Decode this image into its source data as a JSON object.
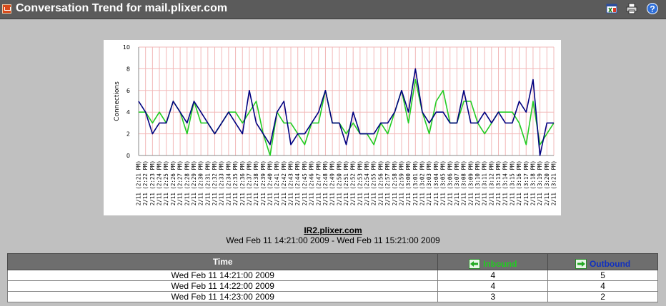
{
  "window": {
    "title": "Conversation Trend for mail.plixer.com",
    "icons": [
      "excel-export-icon",
      "print-icon",
      "help-icon"
    ]
  },
  "colors": {
    "titlebar": "#5b5b5b",
    "inbound": "#22cc22",
    "outbound": "#000080",
    "grid": "#f2b8b8"
  },
  "chart_data": {
    "type": "line",
    "ylabel": "Connections",
    "xlabel": "",
    "ylim": [
      0,
      10
    ],
    "yticks": [
      0,
      2,
      4,
      6,
      8,
      10
    ],
    "categories": [
      "2/11 (2:21 PM)",
      "2/11 (2:22 PM)",
      "2/11 (2:23 PM)",
      "2/11 (2:24 PM)",
      "2/11 (2:25 PM)",
      "2/11 (2:26 PM)",
      "2/11 (2:27 PM)",
      "2/11 (2:28 PM)",
      "2/11 (2:29 PM)",
      "2/11 (2:30 PM)",
      "2/11 (2:31 PM)",
      "2/11 (2:32 PM)",
      "2/11 (2:33 PM)",
      "2/11 (2:34 PM)",
      "2/11 (2:35 PM)",
      "2/11 (2:36 PM)",
      "2/11 (2:37 PM)",
      "2/11 (2:38 PM)",
      "2/11 (2:39 PM)",
      "2/11 (2:40 PM)",
      "2/11 (2:41 PM)",
      "2/11 (2:42 PM)",
      "2/11 (2:43 PM)",
      "2/11 (2:44 PM)",
      "2/11 (2:45 PM)",
      "2/11 (2:46 PM)",
      "2/11 (2:47 PM)",
      "2/11 (2:48 PM)",
      "2/11 (2:49 PM)",
      "2/11 (2:50 PM)",
      "2/11 (2:51 PM)",
      "2/11 (2:52 PM)",
      "2/11 (2:53 PM)",
      "2/11 (2:54 PM)",
      "2/11 (2:55 PM)",
      "2/11 (2:56 PM)",
      "2/11 (2:57 PM)",
      "2/11 (2:58 PM)",
      "2/11 (2:59 PM)",
      "2/11 (3:00 PM)",
      "2/11 (3:01 PM)",
      "2/11 (3:02 PM)",
      "2/11 (3:03 PM)",
      "2/11 (3:04 PM)",
      "2/11 (3:05 PM)",
      "2/11 (3:06 PM)",
      "2/11 (3:07 PM)",
      "2/11 (3:08 PM)",
      "2/11 (3:09 PM)",
      "2/11 (3:10 PM)",
      "2/11 (3:11 PM)",
      "2/11 (3:12 PM)",
      "2/11 (3:13 PM)",
      "2/11 (3:14 PM)",
      "2/11 (3:15 PM)",
      "2/11 (3:16 PM)",
      "2/11 (3:17 PM)",
      "2/11 (3:18 PM)",
      "2/11 (3:19 PM)",
      "2/11 (3:20 PM)",
      "2/11 (3:21 PM)"
    ],
    "series": [
      {
        "name": "Inbound",
        "color": "#22cc22",
        "values": [
          4,
          4,
          3,
          4,
          3,
          5,
          4,
          2,
          5,
          3,
          3,
          2,
          3,
          4,
          4,
          3,
          4,
          5,
          2,
          0,
          4,
          3,
          3,
          2,
          1,
          3,
          3,
          6,
          3,
          3,
          2,
          3,
          2,
          2,
          1,
          3,
          2,
          4,
          6,
          3,
          7,
          4,
          2,
          5,
          6,
          3,
          3,
          5,
          5,
          3,
          2,
          3,
          4,
          4,
          4,
          3,
          1,
          5,
          1,
          2,
          3
        ]
      },
      {
        "name": "Outbound",
        "color": "#000080",
        "values": [
          5,
          4,
          2,
          3,
          3,
          5,
          4,
          3,
          5,
          4,
          3,
          2,
          3,
          4,
          3,
          2,
          6,
          3,
          2,
          1,
          4,
          5,
          1,
          2,
          2,
          3,
          4,
          6,
          3,
          3,
          1,
          4,
          2,
          2,
          2,
          3,
          3,
          4,
          6,
          4,
          8,
          4,
          3,
          4,
          4,
          3,
          3,
          6,
          3,
          3,
          4,
          3,
          4,
          3,
          3,
          5,
          4,
          7,
          0,
          3,
          3
        ]
      }
    ]
  },
  "report": {
    "device": "IR2.plixer.com",
    "range": "Wed Feb 11 14:21:00 2009 - Wed Feb 11 15:21:00 2009"
  },
  "table": {
    "headers": {
      "time": "Time",
      "inbound": "Inbound",
      "outbound": "Outbound"
    },
    "rows": [
      {
        "time": "Wed Feb 11 14:21:00 2009",
        "inbound": "4",
        "outbound": "5"
      },
      {
        "time": "Wed Feb 11 14:22:00 2009",
        "inbound": "4",
        "outbound": "4"
      },
      {
        "time": "Wed Feb 11 14:23:00 2009",
        "inbound": "3",
        "outbound": "2"
      }
    ]
  }
}
